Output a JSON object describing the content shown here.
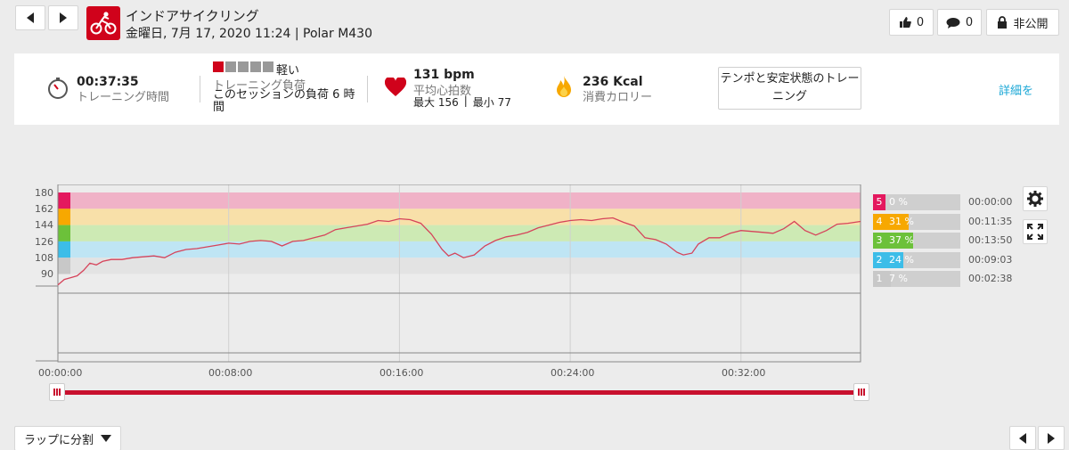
{
  "header": {
    "title": "インドアサイクリング",
    "subtitle": "金曜日, 7月 17, 2020 11:24 | Polar M430",
    "likes_count": "0",
    "comments_count": "0",
    "privacy_label": "非公開"
  },
  "summary": {
    "duration_value": "00:37:35",
    "duration_label": "トレーニング時間",
    "load_level": "軽い",
    "load_level_blocks": 1,
    "load_blocks_total": 5,
    "load_label": "トレーニング負荷",
    "load_desc": "このセッションの負荷 6 時間",
    "hr_avg": "131 bpm",
    "hr_avg_label": "平均心拍数",
    "hr_max": "最大 156",
    "hr_min": "最小 77",
    "kcal_value": "236 Kcal",
    "kcal_label": "消費カロリー",
    "cta_label": "テンポと安定状態のトレーニング",
    "details_link": "詳細を"
  },
  "chart_data": {
    "type": "line",
    "y_ticks": [
      "180",
      "162",
      "144",
      "126",
      "108",
      "90"
    ],
    "ylim": [
      72,
      180
    ],
    "x_ticks": [
      "00:00:00",
      "00:08:00",
      "00:16:00",
      "00:24:00",
      "00:32:00"
    ],
    "x_max_min": 37.6,
    "zone_colors": {
      "5": "#e4185e",
      "4": "#f7a800",
      "3": "#6cc13a",
      "2": "#3cbde8",
      "1": "#c8c8c8"
    },
    "zone_bands": [
      {
        "zone": "5",
        "from": 162,
        "to": 180,
        "color": "#f0b2c7"
      },
      {
        "zone": "4",
        "from": 144,
        "to": 162,
        "color": "#f8e0a9"
      },
      {
        "zone": "3",
        "from": 126,
        "to": 144,
        "color": "#cdeab4"
      },
      {
        "zone": "2",
        "from": 108,
        "to": 126,
        "color": "#bfe5f4"
      },
      {
        "zone": "1",
        "from": 90,
        "to": 108,
        "color": "#e3e3e3"
      }
    ],
    "series": [
      {
        "values": [
          [
            0,
            78
          ],
          [
            0.3,
            84
          ],
          [
            0.6,
            86
          ],
          [
            0.9,
            88
          ],
          [
            1.2,
            94
          ],
          [
            1.5,
            102
          ],
          [
            1.8,
            100
          ],
          [
            2.1,
            104
          ],
          [
            2.5,
            106
          ],
          [
            3.0,
            106
          ],
          [
            3.5,
            108
          ],
          [
            4.0,
            109
          ],
          [
            4.5,
            110
          ],
          [
            5.0,
            108
          ],
          [
            5.5,
            114
          ],
          [
            6.0,
            117
          ],
          [
            6.5,
            118
          ],
          [
            7.0,
            120
          ],
          [
            7.5,
            122
          ],
          [
            8.0,
            124
          ],
          [
            8.5,
            123
          ],
          [
            9.0,
            126
          ],
          [
            9.5,
            127
          ],
          [
            10.0,
            126
          ],
          [
            10.5,
            121
          ],
          [
            11.0,
            126
          ],
          [
            11.5,
            127
          ],
          [
            12.0,
            130
          ],
          [
            12.5,
            133
          ],
          [
            13.0,
            139
          ],
          [
            13.5,
            141
          ],
          [
            14.0,
            143
          ],
          [
            14.5,
            145
          ],
          [
            15.0,
            149
          ],
          [
            15.5,
            148
          ],
          [
            16.0,
            151
          ],
          [
            16.5,
            150
          ],
          [
            17.0,
            146
          ],
          [
            17.5,
            134
          ],
          [
            18.0,
            117
          ],
          [
            18.3,
            110
          ],
          [
            18.6,
            113
          ],
          [
            19.0,
            108
          ],
          [
            19.5,
            111
          ],
          [
            20.0,
            121
          ],
          [
            20.5,
            127
          ],
          [
            21.0,
            131
          ],
          [
            21.5,
            133
          ],
          [
            22.0,
            136
          ],
          [
            22.5,
            141
          ],
          [
            23.0,
            144
          ],
          [
            23.5,
            147
          ],
          [
            24.0,
            149
          ],
          [
            24.5,
            150
          ],
          [
            25.0,
            149
          ],
          [
            25.5,
            151
          ],
          [
            26.0,
            152
          ],
          [
            26.5,
            147
          ],
          [
            27.0,
            143
          ],
          [
            27.5,
            130
          ],
          [
            28.0,
            128
          ],
          [
            28.5,
            123
          ],
          [
            29.0,
            114
          ],
          [
            29.3,
            111
          ],
          [
            29.7,
            113
          ],
          [
            30.0,
            123
          ],
          [
            30.5,
            130
          ],
          [
            31.0,
            130
          ],
          [
            31.5,
            135
          ],
          [
            32.0,
            138
          ],
          [
            32.5,
            137
          ],
          [
            33.0,
            136
          ],
          [
            33.5,
            135
          ],
          [
            34.0,
            140
          ],
          [
            34.5,
            148
          ],
          [
            35.0,
            138
          ],
          [
            35.5,
            133
          ],
          [
            36.0,
            138
          ],
          [
            36.5,
            145
          ],
          [
            37.0,
            146
          ],
          [
            37.6,
            148
          ]
        ]
      }
    ],
    "zones": [
      {
        "num": "5",
        "pct": "0 %",
        "fraction": 0.0,
        "time": "00:00:00",
        "color": "#e4185e"
      },
      {
        "num": "4",
        "pct": "31 %",
        "fraction": 0.31,
        "time": "00:11:35",
        "color": "#f7a800"
      },
      {
        "num": "3",
        "pct": "37 %",
        "fraction": 0.37,
        "time": "00:13:50",
        "color": "#6cc13a"
      },
      {
        "num": "2",
        "pct": "24 %",
        "fraction": 0.24,
        "time": "00:09:03",
        "color": "#3cbde8"
      },
      {
        "num": "1",
        "pct": "7 %",
        "fraction": 0.07,
        "time": "00:02:38",
        "color": "#c8c8c8"
      }
    ]
  },
  "footer": {
    "lap_label": "ラップに分割"
  },
  "colors": {
    "brand_red": "#d0021b",
    "line_color": "#d6435a",
    "link_blue": "#1aa7d6"
  }
}
